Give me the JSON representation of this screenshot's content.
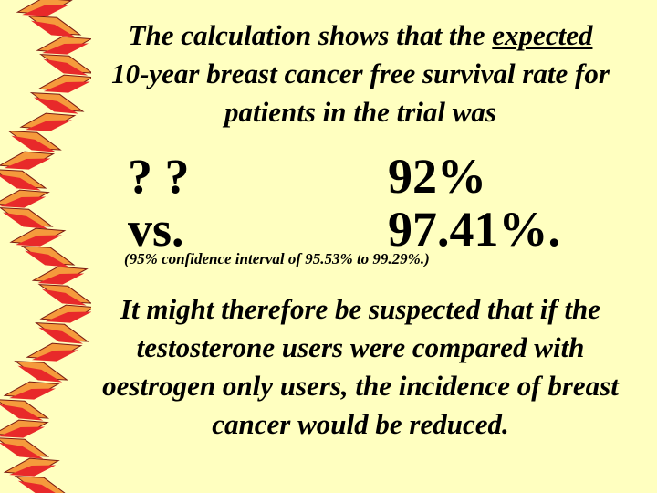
{
  "heading": {
    "part1": "The calculation shows that the ",
    "underlined": "expected",
    "part2": "10-year breast cancer free survival rate for patients in the trial was"
  },
  "comparison": {
    "unknown": "? ?",
    "vs": "vs.",
    "value_a": "92%",
    "value_b": "97.41%."
  },
  "confidence_interval": "(95% confidence interval of 95.53% to 99.29%.)",
  "conclusion": "It might therefore be suspected that if the testosterone users were compared with oestrogen only users, the incidence of breast cancer would be reduced.",
  "colors": {
    "background": "#ffffc0",
    "swirl_red": "#e8292a",
    "swirl_orange": "#f59a3c",
    "swirl_dark": "#7a1b12"
  }
}
